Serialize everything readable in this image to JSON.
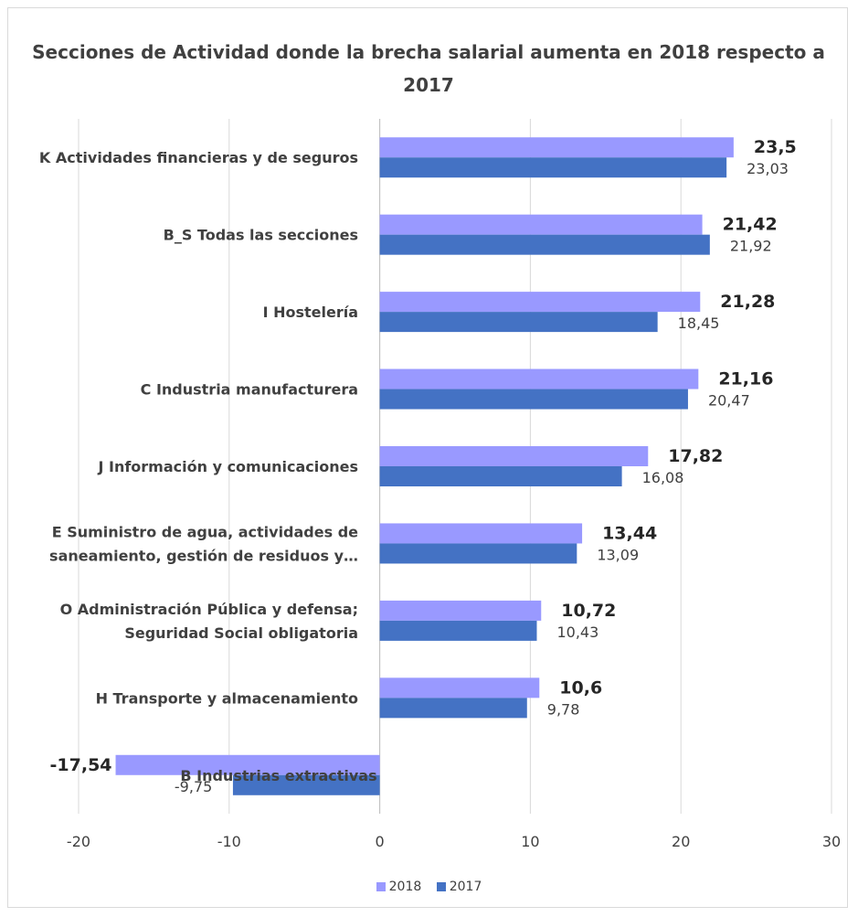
{
  "chart_data": {
    "type": "bar",
    "orientation": "horizontal",
    "title": "Secciones de Actividad donde la brecha salarial aumenta en 2018 respecto a 2017",
    "categories": [
      [
        "K Actividades financieras y de seguros"
      ],
      [
        "B_S Todas las secciones"
      ],
      [
        "I Hostelería"
      ],
      [
        "C Industria manufacturera"
      ],
      [
        "J Información y comunicaciones"
      ],
      [
        "E Suministro de agua, actividades de",
        "saneamiento, gestión de residuos y…"
      ],
      [
        "O Administración Pública y defensa;",
        "Seguridad Social obligatoria"
      ],
      [
        "H Transporte y almacenamiento"
      ],
      [
        "B Industrias extractivas"
      ]
    ],
    "series": [
      {
        "name": "2018",
        "color": "#9999ff",
        "values": [
          23.5,
          21.42,
          21.28,
          21.16,
          17.82,
          13.44,
          10.72,
          10.6,
          -17.54
        ],
        "labels": [
          "23,5",
          "21,42",
          "21,28",
          "21,16",
          "17,82",
          "13,44",
          "10,72",
          "10,6",
          "-17,54"
        ]
      },
      {
        "name": "2017",
        "color": "#4472c4",
        "values": [
          23.03,
          21.92,
          18.45,
          20.47,
          16.08,
          13.09,
          10.43,
          9.78,
          -9.75
        ],
        "labels": [
          "23,03",
          "21,92",
          "18,45",
          "20,47",
          "16,08",
          "13,09",
          "10,43",
          "9,78",
          "-9,75"
        ]
      }
    ],
    "xlim": [
      -20,
      30
    ],
    "xticks": [
      -20,
      -10,
      0,
      10,
      20,
      30
    ],
    "xtick_labels": [
      "-20",
      "-10",
      "0",
      "10",
      "20",
      "30"
    ],
    "grid": true,
    "legend_position": "bottom"
  }
}
